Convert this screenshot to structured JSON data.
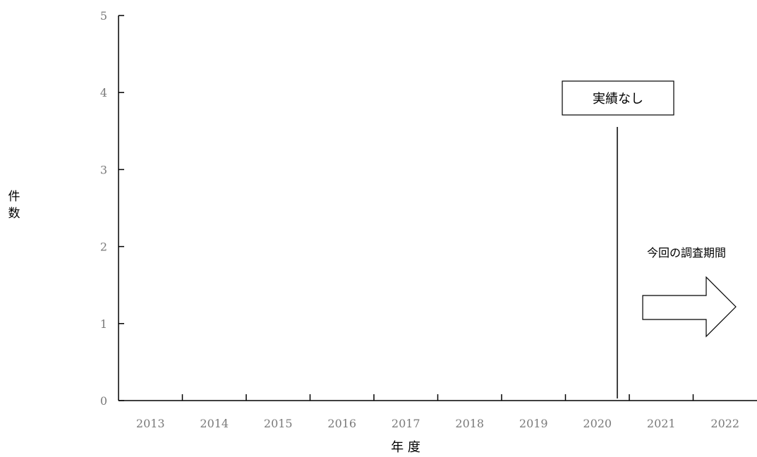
{
  "chart_data": {
    "type": "bar",
    "categories": [
      "2013",
      "2014",
      "2015",
      "2016",
      "2017",
      "2018",
      "2019",
      "2020",
      "2021",
      "2022"
    ],
    "series": [
      {
        "values": [
          0,
          0,
          0,
          0,
          0,
          0,
          0,
          0,
          0,
          0
        ]
      }
    ],
    "title": "",
    "xlabel": "年 度",
    "ylabel": "件数",
    "ylim": [
      0,
      5
    ],
    "yticks": [
      "0",
      "1",
      "2",
      "3",
      "4",
      "5"
    ],
    "grid": false,
    "annotations": {
      "no_results_label": "実績なし",
      "survey_period_label": "今回の調査期間",
      "survey_period_start_after": "2020"
    }
  }
}
